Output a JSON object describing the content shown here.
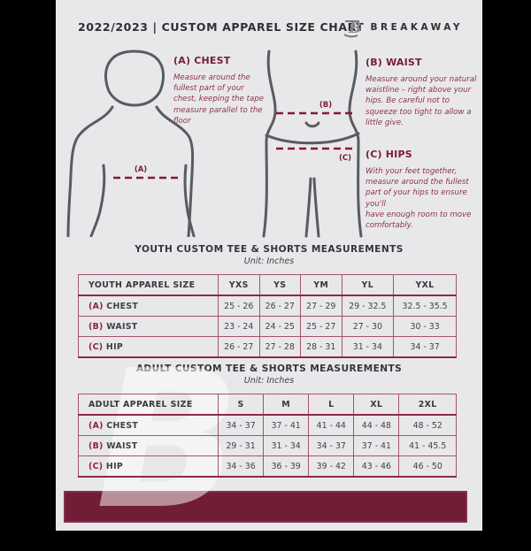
{
  "header": {
    "title": "2022/2023  |  CUSTOM APPAREL SIZE CHART",
    "brand": "BREAKAWAY",
    "logo_glyph": "B"
  },
  "guide": {
    "chest_heading": "(A) CHEST",
    "chest_text": "Measure around the fullest part of your chest, keeping the tape measure parallel to the floor",
    "waist_heading": "(B) WAIST",
    "waist_text": "Measure around your natural waistline – right above your hips. Be careful not to squeeze too tight to allow a little give.",
    "hips_heading": "(C) HIPS",
    "hips_text": "With your feet together, measure around the fullest part of your hips to ensure you'll\nhave enough room to move comfortably.",
    "marker_a": "(A)",
    "marker_b": "(B)",
    "marker_c": "(C)"
  },
  "youth": {
    "title": "YOUTH CUSTOM TEE & SHORTS MEASUREMENTS",
    "unit": "Unit: Inches",
    "size_col_header": "YOUTH APPAREL SIZE",
    "sizes": [
      "YXS",
      "YS",
      "YM",
      "YL",
      "YXL"
    ],
    "rows": [
      {
        "key": "(A)",
        "label": "CHEST",
        "values": [
          "25 - 26",
          "26 - 27",
          "27 - 29",
          "29 - 32.5",
          "32.5 - 35.5"
        ]
      },
      {
        "key": "(B)",
        "label": "WAIST",
        "values": [
          "23 - 24",
          "24 - 25",
          "25 - 27",
          "27 - 30",
          "30 - 33"
        ]
      },
      {
        "key": "(C)",
        "label": "HIP",
        "values": [
          "26 - 27",
          "27 - 28",
          "28 - 31",
          "31 - 34",
          "34 - 37"
        ]
      }
    ]
  },
  "adult": {
    "title": "ADULT CUSTOM TEE & SHORTS MEASUREMENTS",
    "unit": "Unit: Inches",
    "size_col_header": "ADULT APPAREL SIZE",
    "sizes": [
      "S",
      "M",
      "L",
      "XL",
      "2XL"
    ],
    "rows": [
      {
        "key": "(A)",
        "label": "CHEST",
        "values": [
          "34 - 37",
          "37 - 41",
          "41 - 44",
          "44 - 48",
          "48 - 52"
        ]
      },
      {
        "key": "(B)",
        "label": "WAIST",
        "values": [
          "29 - 31",
          "31 - 34",
          "34 - 37",
          "37 - 41",
          "41 - 45.5"
        ]
      },
      {
        "key": "(C)",
        "label": "HIP",
        "values": [
          "34 - 36",
          "36 - 39",
          "39 - 42",
          "43 - 46",
          "46 - 50"
        ]
      }
    ]
  },
  "colors": {
    "page_background": "#e8e8ea",
    "outer_background": "#000000",
    "accent_maroon": "#7a1c38",
    "footer_bar": "#721d36",
    "table_border": "#a3536d",
    "figure_outline": "#5a5b5e"
  },
  "chart_data": [
    {
      "type": "table",
      "title": "YOUTH CUSTOM TEE & SHORTS MEASUREMENTS (Unit: Inches)",
      "columns": [
        "YOUTH APPAREL SIZE",
        "YXS",
        "YS",
        "YM",
        "YL",
        "YXL"
      ],
      "rows": [
        [
          "(A) CHEST",
          "25 - 26",
          "26 - 27",
          "27 - 29",
          "29 - 32.5",
          "32.5 - 35.5"
        ],
        [
          "(B) WAIST",
          "23 - 24",
          "24 - 25",
          "25 - 27",
          "27 - 30",
          "30 - 33"
        ],
        [
          "(C) HIP",
          "26 - 27",
          "27 - 28",
          "28 - 31",
          "31 - 34",
          "34 - 37"
        ]
      ]
    },
    {
      "type": "table",
      "title": "ADULT CUSTOM TEE & SHORTS MEASUREMENTS (Unit: Inches)",
      "columns": [
        "ADULT APPAREL SIZE",
        "S",
        "M",
        "L",
        "XL",
        "2XL"
      ],
      "rows": [
        [
          "(A) CHEST",
          "34 - 37",
          "37 - 41",
          "41 - 44",
          "44 - 48",
          "48 - 52"
        ],
        [
          "(B) WAIST",
          "29 - 31",
          "31 - 34",
          "34 - 37",
          "37 - 41",
          "41 - 45.5"
        ],
        [
          "(C) HIP",
          "34 - 36",
          "36 - 39",
          "39 - 42",
          "43 - 46",
          "46 - 50"
        ]
      ]
    }
  ]
}
